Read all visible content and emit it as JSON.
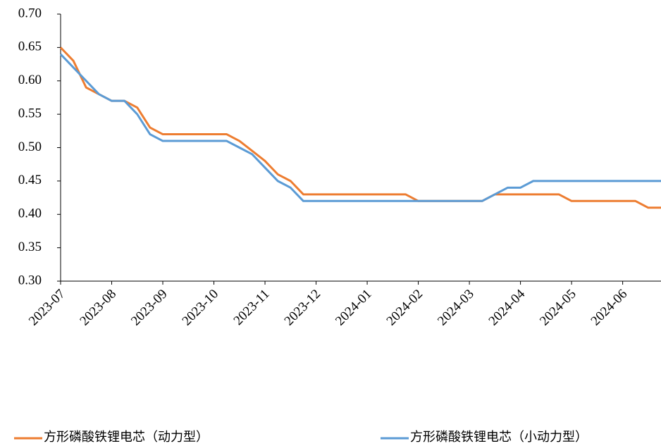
{
  "chart_data": {
    "type": "line",
    "categories": [
      "2023-07",
      null,
      null,
      null,
      "2023-08",
      null,
      null,
      null,
      "2023-09",
      null,
      null,
      null,
      "2023-10",
      null,
      null,
      null,
      "2023-11",
      null,
      null,
      null,
      "2023-12",
      null,
      null,
      null,
      "2024-01",
      null,
      null,
      null,
      "2024-02",
      null,
      null,
      null,
      "2024-03",
      null,
      null,
      null,
      "2024-04",
      null,
      null,
      null,
      "2024-05",
      null,
      null,
      null,
      "2024-06",
      null,
      null,
      null
    ],
    "series": [
      {
        "name": "方形磷酸铁锂电芯（动力型）",
        "color": "#ed7d31",
        "values": [
          0.65,
          0.63,
          0.59,
          0.58,
          0.57,
          0.57,
          0.56,
          0.53,
          0.52,
          0.52,
          0.52,
          0.52,
          0.52,
          0.52,
          0.51,
          0.495,
          0.48,
          0.46,
          0.45,
          0.43,
          0.43,
          0.43,
          0.43,
          0.43,
          0.43,
          0.43,
          0.43,
          0.43,
          0.42,
          0.42,
          0.42,
          0.42,
          0.42,
          0.42,
          0.43,
          0.43,
          0.43,
          0.43,
          0.43,
          0.43,
          0.42,
          0.42,
          0.42,
          0.42,
          0.42,
          0.42,
          0.41,
          0.41
        ]
      },
      {
        "name": "方形磷酸铁锂电芯（小动力型）",
        "color": "#5b9bd5",
        "values": [
          0.64,
          0.62,
          0.6,
          0.58,
          0.57,
          0.57,
          0.55,
          0.52,
          0.51,
          0.51,
          0.51,
          0.51,
          0.51,
          0.51,
          0.5,
          0.49,
          0.47,
          0.45,
          0.44,
          0.42,
          0.42,
          0.42,
          0.42,
          0.42,
          0.42,
          0.42,
          0.42,
          0.42,
          0.42,
          0.42,
          0.42,
          0.42,
          0.42,
          0.42,
          0.43,
          0.44,
          0.44,
          0.45,
          0.45,
          0.45,
          0.45,
          0.45,
          0.45,
          0.45,
          0.45,
          0.45,
          0.45,
          0.45
        ]
      }
    ],
    "ylim": [
      0.3,
      0.7
    ],
    "yticks": [
      {
        "value": 0.3,
        "label": "0.30"
      },
      0.35,
      {
        "value": 0.4,
        "label": "0.40"
      },
      0.45,
      {
        "value": 0.5,
        "label": "0.50"
      },
      0.55,
      {
        "value": 0.6,
        "label": "0.60"
      },
      0.65,
      {
        "value": 0.7,
        "label": "0.70"
      }
    ],
    "grid": false
  }
}
